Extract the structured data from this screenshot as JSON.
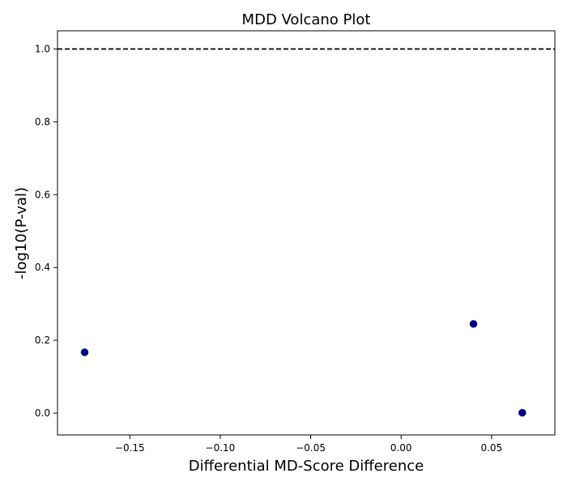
{
  "chart_data": {
    "type": "scatter",
    "title": "MDD Volcano Plot",
    "xlabel": "Differential MD-Score Difference",
    "ylabel": "-log10(P-val)",
    "xlim": [
      -0.19,
      0.085
    ],
    "ylim": [
      -0.06,
      1.05
    ],
    "xticks": [
      -0.15,
      -0.1,
      -0.05,
      0.0,
      0.05
    ],
    "xtick_labels": [
      "−0.15",
      "−0.10",
      "−0.05",
      "0.00",
      "0.05"
    ],
    "yticks": [
      0.0,
      0.2,
      0.4,
      0.6,
      0.8,
      1.0
    ],
    "ytick_labels": [
      "0.0",
      "0.2",
      "0.4",
      "0.6",
      "0.8",
      "1.0"
    ],
    "grid": false,
    "legend": "none",
    "threshold_line": {
      "y": 1.0,
      "style": "dashed",
      "color": "#000000"
    },
    "marker_color": "#000080",
    "points": [
      {
        "x": -0.175,
        "y": 0.167
      },
      {
        "x": 0.04,
        "y": 0.245
      },
      {
        "x": 0.067,
        "y": 0.001
      }
    ]
  }
}
